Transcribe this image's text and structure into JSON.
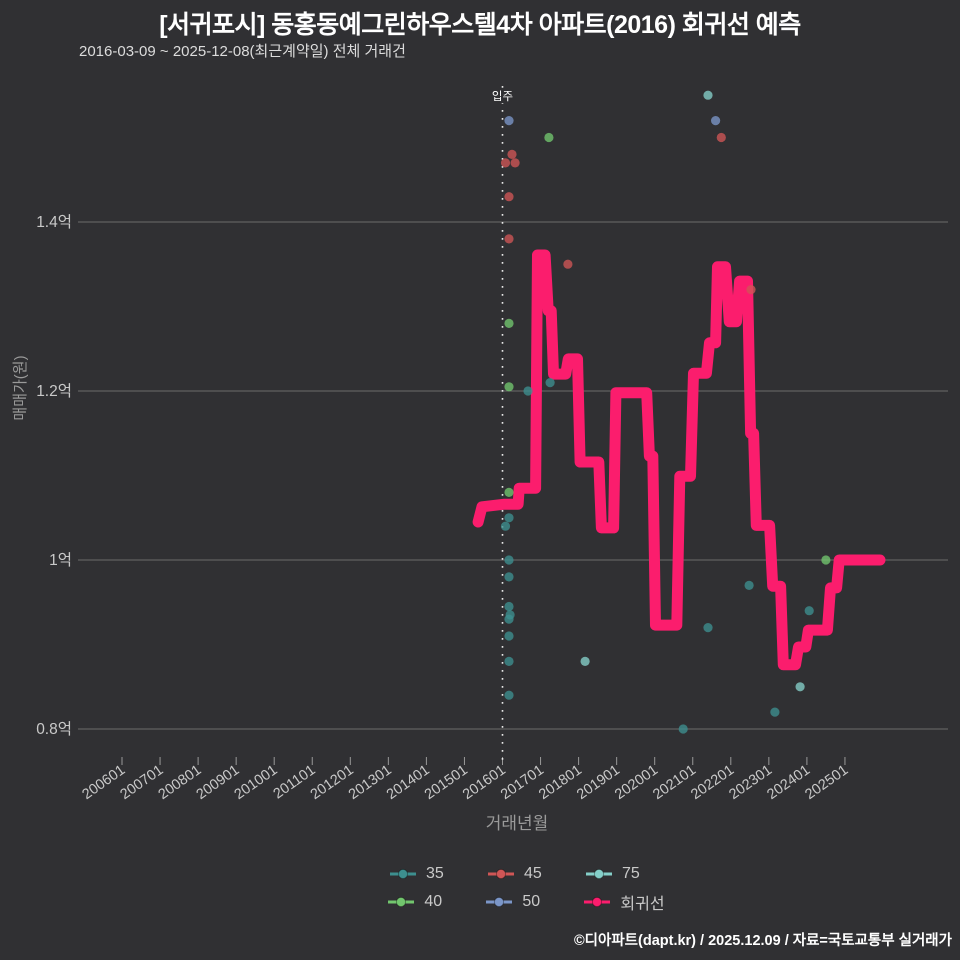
{
  "header": {
    "title": "[서귀포시] 동홍동예그린하우스텔4차 아파트(2016) 회귀선 예측",
    "subtitle": "2016-03-09 ~ 2025-12-08(최근계약일) 전체 거래건"
  },
  "footer": {
    "credit": "©디아파트(dapt.kr) / 2025.12.09 / 자료=국토교통부 실거래가"
  },
  "colors": {
    "background": "#303033",
    "gridline": "#6b6b6b",
    "tick_text": "#c9c9c9",
    "axis_title": "#9a9a9a",
    "annotation": "#e8e8e8"
  },
  "legend": {
    "rows": [
      [
        "35",
        "45",
        "75"
      ],
      [
        "40",
        "50",
        "회귀선"
      ]
    ]
  },
  "chart_data": {
    "type": "scatter",
    "title": "[서귀포시] 동홍동예그린하우스텔4차 아파트(2016) 회귀선 예측",
    "xlabel": "거래년월",
    "ylabel": "매매가(원)",
    "x_ticks": [
      "200601",
      "200701",
      "200801",
      "200901",
      "201001",
      "201101",
      "201201",
      "201301",
      "201401",
      "201501",
      "201601",
      "201701",
      "201801",
      "201901",
      "202001",
      "202101",
      "202201",
      "202301",
      "202401",
      "202501"
    ],
    "y_ticks": [
      {
        "v": 1.4,
        "label": "1.4억"
      },
      {
        "v": 1.2,
        "label": "1.2억"
      },
      {
        "v": 1.0,
        "label": "1억"
      },
      {
        "v": 0.8,
        "label": "0.8억"
      }
    ],
    "ylim_eok": [
      0.74,
      1.62
    ],
    "xlim_year": [
      2004.8,
      2026.8
    ],
    "grid": true,
    "legend_position": "bottom",
    "annotation": {
      "label": "입주",
      "x_year": 2016.0
    },
    "series": [
      {
        "name": "35",
        "color": "#3d8f8f",
        "points": [
          [
            2016.08,
            1.04
          ],
          [
            2016.17,
            1.05
          ],
          [
            2016.17,
            1.0
          ],
          [
            2016.17,
            0.98
          ],
          [
            2016.17,
            0.945
          ],
          [
            2016.2,
            0.935
          ],
          [
            2016.17,
            0.93
          ],
          [
            2016.17,
            0.91
          ],
          [
            2016.17,
            0.88
          ],
          [
            2016.17,
            0.84
          ],
          [
            2016.67,
            1.2
          ],
          [
            2017.25,
            1.21
          ],
          [
            2020.75,
            0.8
          ],
          [
            2021.4,
            0.92
          ],
          [
            2022.48,
            0.97
          ],
          [
            2023.16,
            0.82
          ],
          [
            2024.06,
            0.94
          ]
        ]
      },
      {
        "name": "40",
        "color": "#72c66e",
        "points": [
          [
            2016.17,
            1.28
          ],
          [
            2016.17,
            1.205
          ],
          [
            2016.17,
            1.08
          ],
          [
            2017.22,
            1.5
          ],
          [
            2024.5,
            1.0
          ]
        ]
      },
      {
        "name": "45",
        "color": "#d05656",
        "points": [
          [
            2016.08,
            1.47
          ],
          [
            2016.25,
            1.48
          ],
          [
            2016.33,
            1.47
          ],
          [
            2016.17,
            1.43
          ],
          [
            2016.17,
            1.38
          ],
          [
            2017.72,
            1.35
          ],
          [
            2021.75,
            1.5
          ],
          [
            2022.53,
            1.32
          ]
        ]
      },
      {
        "name": "50",
        "color": "#7b96c8",
        "points": [
          [
            2016.17,
            1.52
          ],
          [
            2021.6,
            1.52
          ]
        ]
      },
      {
        "name": "75",
        "color": "#85cfc9",
        "points": [
          [
            2021.4,
            1.55
          ],
          [
            2018.17,
            0.88
          ],
          [
            2023.82,
            0.85
          ]
        ]
      }
    ],
    "regression": {
      "name": "회귀선",
      "color": "#fb1d6d",
      "points": [
        [
          2015.36,
          1.045
        ],
        [
          2015.46,
          1.063
        ],
        [
          2016.05,
          1.066
        ],
        [
          2016.41,
          1.066
        ],
        [
          2016.44,
          1.085
        ],
        [
          2016.87,
          1.085
        ],
        [
          2016.92,
          1.361
        ],
        [
          2017.12,
          1.361
        ],
        [
          2017.2,
          1.295
        ],
        [
          2017.28,
          1.295
        ],
        [
          2017.34,
          1.22
        ],
        [
          2017.66,
          1.22
        ],
        [
          2017.73,
          1.238
        ],
        [
          2017.97,
          1.238
        ],
        [
          2018.04,
          1.116
        ],
        [
          2018.53,
          1.116
        ],
        [
          2018.6,
          1.038
        ],
        [
          2018.92,
          1.038
        ],
        [
          2018.98,
          1.198
        ],
        [
          2019.79,
          1.198
        ],
        [
          2019.86,
          1.123
        ],
        [
          2019.95,
          1.123
        ],
        [
          2020.02,
          0.923
        ],
        [
          2020.58,
          0.923
        ],
        [
          2020.66,
          1.099
        ],
        [
          2020.94,
          1.099
        ],
        [
          2021.02,
          1.221
        ],
        [
          2021.36,
          1.221
        ],
        [
          2021.44,
          1.257
        ],
        [
          2021.6,
          1.257
        ],
        [
          2021.65,
          1.347
        ],
        [
          2021.86,
          1.347
        ],
        [
          2021.96,
          1.282
        ],
        [
          2022.15,
          1.282
        ],
        [
          2022.23,
          1.33
        ],
        [
          2022.44,
          1.33
        ],
        [
          2022.52,
          1.15
        ],
        [
          2022.6,
          1.15
        ],
        [
          2022.67,
          1.041
        ],
        [
          2023.02,
          1.041
        ],
        [
          2023.1,
          0.969
        ],
        [
          2023.31,
          0.969
        ],
        [
          2023.38,
          0.876
        ],
        [
          2023.7,
          0.876
        ],
        [
          2023.78,
          0.897
        ],
        [
          2023.97,
          0.897
        ],
        [
          2024.04,
          0.917
        ],
        [
          2024.54,
          0.917
        ],
        [
          2024.62,
          0.967
        ],
        [
          2024.78,
          0.967
        ],
        [
          2024.85,
          1.0
        ],
        [
          2025.92,
          1.0
        ]
      ]
    }
  }
}
